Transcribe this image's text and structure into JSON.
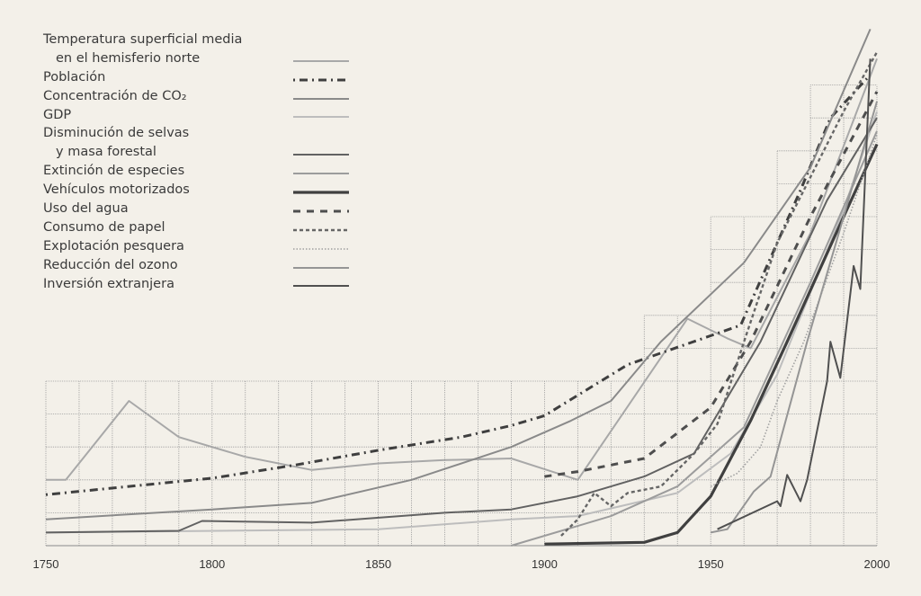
{
  "chart_data": {
    "type": "line",
    "title": "",
    "xlabel": "",
    "ylabel": "",
    "xlim": [
      1750,
      2000
    ],
    "ylim": [
      0,
      16
    ],
    "x_ticks": [
      "1750",
      "1800",
      "1850",
      "1900",
      "1950",
      "2000"
    ],
    "grid": true,
    "legend_position": "top-left",
    "series": [
      {
        "name": [
          "Temperatura superficial media",
          "en el hemisferio norte"
        ],
        "color": "#a8a8a8",
        "style": "solid",
        "points": [
          [
            1750,
            2.0
          ],
          [
            1756,
            2.0
          ],
          [
            1775,
            4.4
          ],
          [
            1790,
            3.3
          ],
          [
            1810,
            2.7
          ],
          [
            1830,
            2.3
          ],
          [
            1850,
            2.5
          ],
          [
            1870,
            2.6
          ],
          [
            1890,
            2.65
          ],
          [
            1910,
            2.0
          ],
          [
            1943,
            6.9
          ],
          [
            1955,
            6.3
          ],
          [
            1962,
            6.0
          ],
          [
            1980,
            9.5
          ],
          [
            2000,
            14.8
          ]
        ]
      },
      {
        "name": [
          "Población"
        ],
        "color": "#3f3f3f",
        "style": "dashdot",
        "points": [
          [
            1750,
            1.55
          ],
          [
            1775,
            1.8
          ],
          [
            1800,
            2.05
          ],
          [
            1825,
            2.45
          ],
          [
            1850,
            2.9
          ],
          [
            1875,
            3.3
          ],
          [
            1890,
            3.65
          ],
          [
            1900,
            3.95
          ],
          [
            1925,
            5.5
          ],
          [
            1959,
            6.7
          ],
          [
            1977,
            10.8
          ],
          [
            1986,
            13.0
          ],
          [
            1997,
            14.2
          ]
        ]
      },
      {
        "name": [
          "Concentración de CO₂"
        ],
        "color": "#8a8a8a",
        "style": "solid",
        "points": [
          [
            1750,
            0.8
          ],
          [
            1800,
            1.1
          ],
          [
            1830,
            1.3
          ],
          [
            1860,
            2.0
          ],
          [
            1890,
            3.0
          ],
          [
            1908,
            3.8
          ],
          [
            1920,
            4.4
          ],
          [
            1935,
            6.2
          ],
          [
            1960,
            8.6
          ],
          [
            1980,
            11.5
          ],
          [
            1998,
            15.7
          ]
        ]
      },
      {
        "name": [
          "GDP"
        ],
        "color": "#bdbdbd",
        "style": "solid",
        "points": [
          [
            1750,
            0.4
          ],
          [
            1850,
            0.5
          ],
          [
            1890,
            0.8
          ],
          [
            1910,
            0.9
          ],
          [
            1940,
            1.6
          ],
          [
            1956,
            2.8
          ],
          [
            1970,
            5.2
          ],
          [
            1990,
            10.2
          ],
          [
            2000,
            13.2
          ]
        ]
      },
      {
        "name": [
          "Disminución de selvas",
          "y masa forestal"
        ],
        "color": "#626262",
        "style": "solid",
        "points": [
          [
            1750,
            0.4
          ],
          [
            1790,
            0.45
          ],
          [
            1797,
            0.75
          ],
          [
            1830,
            0.7
          ],
          [
            1870,
            1.0
          ],
          [
            1890,
            1.1
          ],
          [
            1910,
            1.5
          ],
          [
            1930,
            2.1
          ],
          [
            1945,
            2.8
          ],
          [
            1965,
            6.2
          ],
          [
            1985,
            10.5
          ],
          [
            2000,
            13.0
          ]
        ]
      },
      {
        "name": [
          "Extinción de especies"
        ],
        "color": "#9c9c9c",
        "style": "solid",
        "points": [
          [
            1890,
            0.0
          ],
          [
            1920,
            0.9
          ],
          [
            1940,
            1.8
          ],
          [
            1960,
            3.6
          ],
          [
            1980,
            8.0
          ],
          [
            2000,
            12.6
          ]
        ]
      },
      {
        "name": [
          "Vehículos motorizados"
        ],
        "color": "#404040",
        "style": "solid-thick",
        "points": [
          [
            1900,
            0.05
          ],
          [
            1930,
            0.1
          ],
          [
            1940,
            0.4
          ],
          [
            1950,
            1.5
          ],
          [
            1962,
            3.8
          ],
          [
            1973,
            6.2
          ],
          [
            1990,
            10.0
          ],
          [
            2000,
            12.2
          ]
        ]
      },
      {
        "name": [
          "Uso del agua"
        ],
        "color": "#4e4e4e",
        "style": "dashed",
        "points": [
          [
            1900,
            2.1
          ],
          [
            1910,
            2.25
          ],
          [
            1930,
            2.65
          ],
          [
            1950,
            4.2
          ],
          [
            1962,
            6.2
          ],
          [
            1980,
            10.0
          ],
          [
            2000,
            13.8
          ]
        ]
      },
      {
        "name": [
          "Consumo de papel"
        ],
        "color": "#666666",
        "style": "short-dashed",
        "points": [
          [
            1905,
            0.3
          ],
          [
            1910,
            0.8
          ],
          [
            1915,
            1.6
          ],
          [
            1920,
            1.2
          ],
          [
            1925,
            1.6
          ],
          [
            1935,
            1.8
          ],
          [
            1945,
            2.8
          ],
          [
            1952,
            3.7
          ],
          [
            1960,
            6.2
          ],
          [
            1970,
            9.2
          ],
          [
            1990,
            13.2
          ],
          [
            2000,
            15.0
          ]
        ]
      },
      {
        "name": [
          "Explotación pesquera"
        ],
        "color": "#a0a0a0",
        "style": "dotted",
        "points": [
          [
            1950,
            1.8
          ],
          [
            1958,
            2.2
          ],
          [
            1965,
            3.0
          ],
          [
            1970,
            4.4
          ],
          [
            1978,
            6.2
          ],
          [
            1990,
            9.5
          ],
          [
            2000,
            12.5
          ]
        ]
      },
      {
        "name": [
          "Reducción del ozono"
        ],
        "color": "#959595",
        "style": "solid",
        "points": [
          [
            1950,
            0.4
          ],
          [
            1955,
            0.5
          ],
          [
            1963,
            1.65
          ],
          [
            1968,
            2.1
          ],
          [
            1979,
            6.2
          ],
          [
            1990,
            10.0
          ],
          [
            2000,
            13.5
          ]
        ]
      },
      {
        "name": [
          "Inversión extranjera"
        ],
        "color": "#505050",
        "style": "solid",
        "points": [
          [
            1952,
            0.5
          ],
          [
            1970,
            1.35
          ],
          [
            1971,
            1.2
          ],
          [
            1973,
            2.15
          ],
          [
            1977,
            1.35
          ],
          [
            1979,
            2.0
          ],
          [
            1985,
            5.0
          ],
          [
            1986,
            6.2
          ],
          [
            1989,
            5.1
          ],
          [
            1993,
            8.5
          ],
          [
            1995,
            7.8
          ],
          [
            1998,
            14.8
          ]
        ]
      }
    ]
  }
}
